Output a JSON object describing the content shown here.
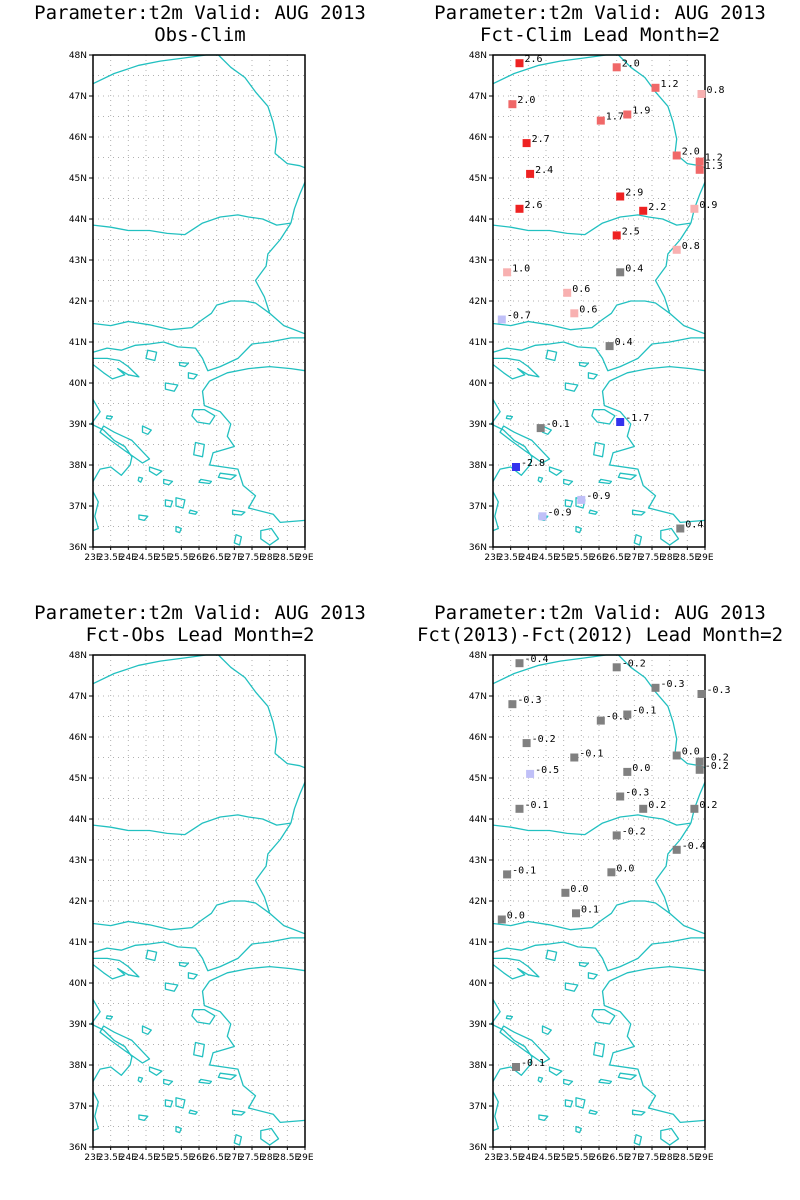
{
  "axes": {
    "lat_labels": [
      "36N",
      "37N",
      "38N",
      "39N",
      "40N",
      "41N",
      "42N",
      "43N",
      "44N",
      "45N",
      "46N",
      "47N",
      "48N"
    ],
    "lon_labels": [
      "23E",
      "23.5E",
      "24E",
      "24.5E",
      "25E",
      "25.5E",
      "26E",
      "26.5E",
      "27E",
      "27.5E",
      "28E",
      "28.5E",
      "29E"
    ],
    "lon_range": [
      23,
      29
    ],
    "lat_range": [
      36,
      48
    ]
  },
  "colors": {
    "coast": "#22c0c0",
    "grid": "#b0b0b0",
    "frame": "#000000",
    "strong_warm": "#ee2222",
    "warm": "#f06868",
    "light_warm": "#f8b0b0",
    "neutral": "#808080",
    "light_cool": "#c0c0f8",
    "strong_cool": "#3333ee"
  },
  "panels": [
    {
      "id": "obs-clim",
      "title": "Parameter:t2m Valid: AUG 2013",
      "subtitle": "Obs-Clim",
      "points": []
    },
    {
      "id": "fct-clim",
      "title": "Parameter:t2m Valid: AUG 2013",
      "subtitle": "Fct-Clim Lead Month=2",
      "points": [
        {
          "lon": 23.75,
          "lat": 47.8,
          "label": "2.6",
          "cls": "strong_warm"
        },
        {
          "lon": 26.5,
          "lat": 47.7,
          "label": "2.0",
          "cls": "warm"
        },
        {
          "lon": 27.6,
          "lat": 47.2,
          "label": "1.2",
          "cls": "warm"
        },
        {
          "lon": 28.9,
          "lat": 47.05,
          "label": "0.8",
          "cls": "light_warm"
        },
        {
          "lon": 23.55,
          "lat": 46.8,
          "label": "2.0",
          "cls": "warm"
        },
        {
          "lon": 26.05,
          "lat": 46.4,
          "label": "1.7",
          "cls": "warm"
        },
        {
          "lon": 26.8,
          "lat": 46.55,
          "label": "1.9",
          "cls": "warm"
        },
        {
          "lon": 23.95,
          "lat": 45.85,
          "label": "2.7",
          "cls": "strong_warm"
        },
        {
          "lon": 28.2,
          "lat": 45.55,
          "label": "2.0",
          "cls": "warm"
        },
        {
          "lon": 28.85,
          "lat": 45.4,
          "label": "1.2",
          "cls": "warm"
        },
        {
          "lon": 28.85,
          "lat": 45.2,
          "label": "1.3",
          "cls": "warm"
        },
        {
          "lon": 24.05,
          "lat": 45.1,
          "label": "2.4",
          "cls": "strong_warm"
        },
        {
          "lon": 26.6,
          "lat": 44.55,
          "label": "2.9",
          "cls": "strong_warm"
        },
        {
          "lon": 23.75,
          "lat": 44.25,
          "label": "2.6",
          "cls": "strong_warm"
        },
        {
          "lon": 27.25,
          "lat": 44.2,
          "label": "2.2",
          "cls": "strong_warm"
        },
        {
          "lon": 28.7,
          "lat": 44.25,
          "label": "0.9",
          "cls": "light_warm"
        },
        {
          "lon": 26.5,
          "lat": 43.6,
          "label": "2.5",
          "cls": "strong_warm"
        },
        {
          "lon": 28.2,
          "lat": 43.25,
          "label": "0.8",
          "cls": "light_warm"
        },
        {
          "lon": 23.4,
          "lat": 42.7,
          "label": "1.0",
          "cls": "light_warm"
        },
        {
          "lon": 26.6,
          "lat": 42.7,
          "label": "0.4",
          "cls": "neutral"
        },
        {
          "lon": 25.1,
          "lat": 42.2,
          "label": "0.6",
          "cls": "light_warm"
        },
        {
          "lon": 25.3,
          "lat": 41.7,
          "label": "0.6",
          "cls": "light_warm"
        },
        {
          "lon": 23.25,
          "lat": 41.55,
          "label": "-0.7",
          "cls": "light_cool"
        },
        {
          "lon": 26.3,
          "lat": 40.9,
          "label": "0.4",
          "cls": "neutral"
        },
        {
          "lon": 24.35,
          "lat": 38.9,
          "label": "-0.1",
          "cls": "neutral"
        },
        {
          "lon": 26.6,
          "lat": 39.05,
          "label": "-1.7",
          "cls": "strong_cool"
        },
        {
          "lon": 23.65,
          "lat": 37.95,
          "label": "-2.8",
          "cls": "strong_cool"
        },
        {
          "lon": 25.5,
          "lat": 37.15,
          "label": "-0.9",
          "cls": "light_cool"
        },
        {
          "lon": 24.4,
          "lat": 36.75,
          "label": "-0.9",
          "cls": "light_cool"
        },
        {
          "lon": 28.3,
          "lat": 36.45,
          "label": "0.4",
          "cls": "neutral"
        }
      ]
    },
    {
      "id": "fct-obs",
      "title": "Parameter:t2m Valid: AUG 2013",
      "subtitle": "Fct-Obs Lead Month=2",
      "points": []
    },
    {
      "id": "fct2013-fct2012",
      "title": "Parameter:t2m Valid: AUG 2013",
      "subtitle": "Fct(2013)-Fct(2012) Lead Month=2",
      "points": [
        {
          "lon": 23.75,
          "lat": 47.8,
          "label": "-0.4",
          "cls": "neutral"
        },
        {
          "lon": 26.5,
          "lat": 47.7,
          "label": "-0.2",
          "cls": "neutral"
        },
        {
          "lon": 27.6,
          "lat": 47.2,
          "label": "-0.3",
          "cls": "neutral"
        },
        {
          "lon": 28.9,
          "lat": 47.05,
          "label": "-0.3",
          "cls": "neutral"
        },
        {
          "lon": 23.55,
          "lat": 46.8,
          "label": "-0.3",
          "cls": "neutral"
        },
        {
          "lon": 26.05,
          "lat": 46.4,
          "label": "-0.2",
          "cls": "neutral"
        },
        {
          "lon": 26.8,
          "lat": 46.55,
          "label": "-0.1",
          "cls": "neutral"
        },
        {
          "lon": 23.95,
          "lat": 45.85,
          "label": "-0.2",
          "cls": "neutral"
        },
        {
          "lon": 25.3,
          "lat": 45.5,
          "label": "-0.1",
          "cls": "neutral"
        },
        {
          "lon": 28.2,
          "lat": 45.55,
          "label": "0.0",
          "cls": "neutral"
        },
        {
          "lon": 28.85,
          "lat": 45.4,
          "label": "-0.2",
          "cls": "neutral"
        },
        {
          "lon": 28.85,
          "lat": 45.2,
          "label": "-0.2",
          "cls": "neutral"
        },
        {
          "lon": 24.05,
          "lat": 45.1,
          "label": "-0.5",
          "cls": "light_cool"
        },
        {
          "lon": 26.8,
          "lat": 45.15,
          "label": "0.0",
          "cls": "neutral"
        },
        {
          "lon": 26.6,
          "lat": 44.55,
          "label": "-0.3",
          "cls": "neutral"
        },
        {
          "lon": 23.75,
          "lat": 44.25,
          "label": "-0.1",
          "cls": "neutral"
        },
        {
          "lon": 27.25,
          "lat": 44.25,
          "label": "0.2",
          "cls": "neutral"
        },
        {
          "lon": 28.7,
          "lat": 44.25,
          "label": "0.2",
          "cls": "neutral"
        },
        {
          "lon": 26.5,
          "lat": 43.6,
          "label": "-0.2",
          "cls": "neutral"
        },
        {
          "lon": 28.2,
          "lat": 43.25,
          "label": "-0.4",
          "cls": "neutral"
        },
        {
          "lon": 23.4,
          "lat": 42.65,
          "label": "-0.1",
          "cls": "neutral"
        },
        {
          "lon": 26.35,
          "lat": 42.7,
          "label": "0.0",
          "cls": "neutral"
        },
        {
          "lon": 25.05,
          "lat": 42.2,
          "label": "0.0",
          "cls": "neutral"
        },
        {
          "lon": 25.35,
          "lat": 41.7,
          "label": "0.1",
          "cls": "neutral"
        },
        {
          "lon": 23.25,
          "lat": 41.55,
          "label": "0.0",
          "cls": "neutral"
        },
        {
          "lon": 23.65,
          "lat": 37.95,
          "label": "-0.1",
          "cls": "neutral"
        }
      ]
    }
  ]
}
